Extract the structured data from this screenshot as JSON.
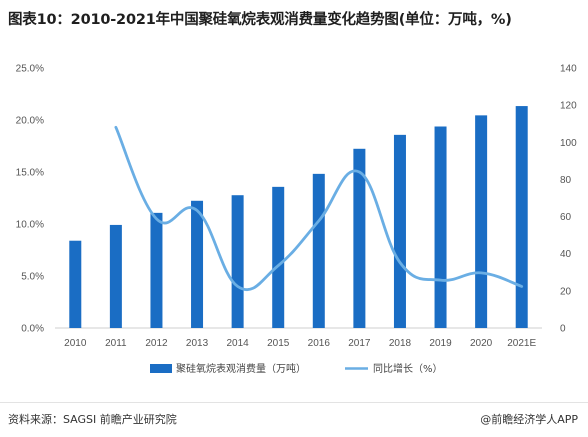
{
  "title": "图表10：2010-2021年中国聚硅氧烷表观消费量变化趋势图(单位：万吨，%)",
  "chart_data": {
    "type": "bar",
    "categories": [
      "2010",
      "2011",
      "2012",
      "2013",
      "2014",
      "2015",
      "2016",
      "2017",
      "2018",
      "2019",
      "2020",
      "2021E"
    ],
    "series": [
      {
        "name": "聚硅氧烷表观消费量（万吨）",
        "type": "bar",
        "axis": "right",
        "color": "#1a6dc4",
        "values": [
          47,
          55.5,
          62,
          68.5,
          71.5,
          76,
          83,
          96.5,
          104,
          108.5,
          114.5,
          119.5
        ]
      },
      {
        "name": "同比增长（%）",
        "type": "line",
        "axis": "left",
        "color": "#6aaee4",
        "values": [
          null,
          19.3,
          10.5,
          11.3,
          4.0,
          6.0,
          10.3,
          15.0,
          6.3,
          4.6,
          5.3,
          4.0
        ]
      }
    ],
    "y_left": {
      "ticks": [
        "0.0%",
        "5.0%",
        "10.0%",
        "15.0%",
        "20.0%",
        "25.0%"
      ],
      "lim": [
        0,
        25
      ]
    },
    "y_right": {
      "ticks": [
        "0",
        "20",
        "40",
        "60",
        "80",
        "100",
        "120",
        "140"
      ],
      "lim": [
        0,
        140
      ]
    },
    "grid": false,
    "legend": "bottom"
  },
  "footer": {
    "source": "资料来源：SAGSI 前瞻产业研究院",
    "brand": "@前瞻经济学人APP"
  }
}
